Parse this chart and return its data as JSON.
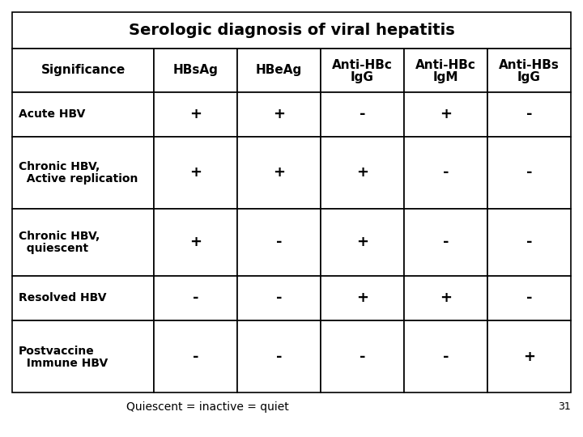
{
  "title": "Serologic diagnosis of viral hepatitis",
  "col_headers_line1": [
    "Significance",
    "HBsAg",
    "HBeAg",
    "Anti-HBc",
    "Anti-HBc",
    "Anti-HBs"
  ],
  "col_headers_line2": [
    "",
    "",
    "",
    "IgG",
    "IgM",
    "IgG"
  ],
  "row_labels": [
    [
      "Acute HBV",
      ""
    ],
    [
      "Chronic HBV,",
      "  Active replication"
    ],
    [
      "Chronic HBV,",
      "  quiescent"
    ],
    [
      "Resolved HBV",
      ""
    ],
    [
      "Postvaccine",
      "  Immune HBV"
    ]
  ],
  "data": [
    [
      "+",
      "+",
      "-",
      "+",
      "-"
    ],
    [
      "+",
      "+",
      "+",
      "-",
      "-"
    ],
    [
      "+",
      "-",
      "+",
      "-",
      "-"
    ],
    [
      "-",
      "-",
      "+",
      "+",
      "-"
    ],
    [
      "-",
      "-",
      "-",
      "-",
      "+"
    ]
  ],
  "footnote": "Quiescent = inactive = quiet",
  "page_number": "31",
  "bg": "#ffffff",
  "border": "#000000",
  "title_fs": 14,
  "header_fs": 11,
  "label_fs": 10,
  "cell_fs": 13,
  "footnote_fs": 10
}
